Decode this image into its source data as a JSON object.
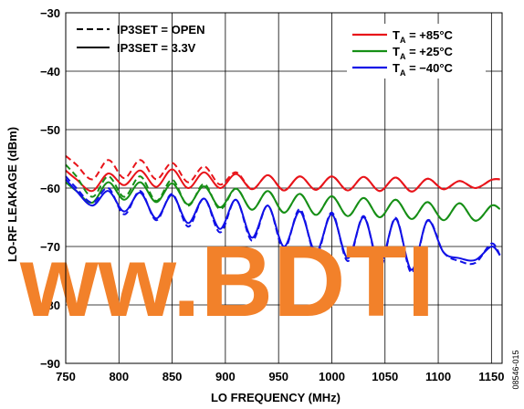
{
  "chart_data": {
    "type": "line",
    "xlabel": "LO FREQUENCY (MHz)",
    "ylabel": "LO-RF LEAKAGE (dBm)",
    "xlim": [
      750,
      1160
    ],
    "ylim": [
      -90,
      -30
    ],
    "xticks": [
      "750",
      "800",
      "850",
      "900",
      "950",
      "1000",
      "1050",
      "1100",
      "1150"
    ],
    "yticks": [
      "−30",
      "−40",
      "−50",
      "−60",
      "−70",
      "−80",
      "−90"
    ],
    "grid": true,
    "legend_styles": [
      {
        "label": "IP3SET = OPEN",
        "line": "dashed"
      },
      {
        "label": "IP3SET = 3.3V",
        "line": "solid"
      }
    ],
    "legend_temps": [
      {
        "sym": "T",
        "sub": "A",
        "val": " = +85°C",
        "color": "#e8141a"
      },
      {
        "sym": "T",
        "sub": "A",
        "val": " = +25°C",
        "color": "#168f16"
      },
      {
        "sym": "T",
        "sub": "A",
        "val": " = −40°C",
        "color": "#1010e6"
      }
    ],
    "series": [
      {
        "temp": "+85°C",
        "ip3set": "3.3V",
        "color": "#e8141a",
        "style": "solid",
        "x": [
          750,
          760,
          775,
          790,
          805,
          820,
          835,
          850,
          865,
          880,
          895,
          910,
          925,
          940,
          955,
          970,
          985,
          1000,
          1015,
          1030,
          1045,
          1060,
          1075,
          1090,
          1105,
          1120,
          1135,
          1150,
          1158
        ],
        "y": [
          -57,
          -58.5,
          -60.5,
          -57.5,
          -59.5,
          -57,
          -59.8,
          -56.8,
          -60,
          -57.3,
          -60,
          -57.6,
          -60.2,
          -57.8,
          -60.4,
          -58,
          -60.3,
          -58,
          -60.4,
          -58.1,
          -60.5,
          -58.2,
          -60.6,
          -58.4,
          -60.2,
          -58.8,
          -60,
          -58.6,
          -58.5
        ]
      },
      {
        "temp": "+85°C",
        "ip3set": "OPEN",
        "color": "#e8141a",
        "style": "dashed",
        "x": [
          750,
          760,
          775,
          790,
          805,
          820,
          835,
          850,
          865,
          880,
          895,
          910,
          925,
          940,
          955,
          970,
          985,
          1000,
          1015,
          1030,
          1045,
          1060,
          1075,
          1090,
          1105,
          1120,
          1135,
          1150,
          1158
        ],
        "y": [
          -54.5,
          -56,
          -58.5,
          -55.2,
          -58.3,
          -55.2,
          -58.5,
          -55.7,
          -59,
          -56.3,
          -59.4,
          -57.3,
          -60.2,
          -57.8,
          -60.4,
          -58,
          -60.3,
          -58,
          -60.4,
          -58.1,
          -60.5,
          -58.2,
          -60.6,
          -58.4,
          -60.2,
          -58.8,
          -60,
          -58.6,
          -58.5
        ]
      },
      {
        "temp": "+25°C",
        "ip3set": "3.3V",
        "color": "#168f16",
        "style": "solid",
        "x": [
          750,
          760,
          775,
          790,
          805,
          820,
          835,
          850,
          865,
          880,
          895,
          910,
          925,
          940,
          955,
          970,
          985,
          1000,
          1015,
          1030,
          1045,
          1060,
          1075,
          1090,
          1105,
          1120,
          1135,
          1150,
          1158
        ],
        "y": [
          -59,
          -60.5,
          -62.5,
          -59,
          -62,
          -59,
          -62.4,
          -59.2,
          -62.8,
          -59.7,
          -63.3,
          -60.1,
          -63.7,
          -60.5,
          -64.2,
          -61,
          -64.6,
          -61.4,
          -64.8,
          -61.7,
          -65,
          -62,
          -65.3,
          -62.4,
          -65.5,
          -62.6,
          -65.6,
          -63,
          -63.6
        ]
      },
      {
        "temp": "+25°C",
        "ip3set": "OPEN",
        "color": "#168f16",
        "style": "dashed",
        "x": [
          750,
          760,
          775,
          790,
          805,
          820,
          835,
          850,
          865,
          880,
          895,
          910,
          925,
          940,
          955,
          970,
          985,
          1000,
          1015,
          1030,
          1045,
          1060,
          1075,
          1090,
          1105,
          1120,
          1135,
          1150,
          1158
        ],
        "y": [
          -56,
          -58,
          -61.5,
          -58,
          -61.5,
          -58,
          -62.2,
          -58.6,
          -63,
          -59.3,
          -63.6,
          -60.1,
          -63.7,
          -60.5,
          -64.2,
          -61,
          -64.6,
          -61.4,
          -64.8,
          -61.7,
          -65,
          -62,
          -65.3,
          -62.4,
          -65.5,
          -62.6,
          -65.6,
          -63,
          -63.6
        ]
      },
      {
        "temp": "−40°C",
        "ip3set": "3.3V",
        "color": "#1010e6",
        "style": "solid",
        "x": [
          750,
          760,
          775,
          790,
          805,
          820,
          835,
          850,
          865,
          880,
          895,
          910,
          925,
          940,
          955,
          970,
          985,
          1000,
          1015,
          1030,
          1045,
          1060,
          1075,
          1090,
          1105,
          1120,
          1135,
          1150,
          1158
        ],
        "y": [
          -58.5,
          -60.5,
          -63,
          -60.5,
          -64,
          -60.8,
          -65.2,
          -61.2,
          -66,
          -61.8,
          -67,
          -62,
          -68.5,
          -63,
          -70,
          -64,
          -71,
          -64.5,
          -72,
          -65,
          -73,
          -65.3,
          -74,
          -65.6,
          -71,
          -72,
          -72.3,
          -70,
          -71.5
        ]
      },
      {
        "temp": "−40°C",
        "ip3set": "OPEN",
        "color": "#1010e6",
        "style": "dashed",
        "x": [
          750,
          760,
          775,
          790,
          805,
          820,
          835,
          850,
          865,
          880,
          895,
          910,
          925,
          940,
          955,
          970,
          985,
          1000,
          1015,
          1030,
          1045,
          1060,
          1075,
          1090,
          1105,
          1120,
          1135,
          1150,
          1158
        ],
        "y": [
          -58,
          -60,
          -62.5,
          -60,
          -64.5,
          -60.5,
          -65.5,
          -61,
          -66.6,
          -61.8,
          -67.6,
          -62,
          -69,
          -63,
          -70.5,
          -63.6,
          -71.5,
          -64.2,
          -72.5,
          -64.8,
          -73.6,
          -65.1,
          -74.5,
          -65.5,
          -71,
          -72.5,
          -72.8,
          -69.5,
          -71.5
        ]
      }
    ]
  },
  "watermark": "ww.BDTI",
  "figure_id": "08546-015"
}
